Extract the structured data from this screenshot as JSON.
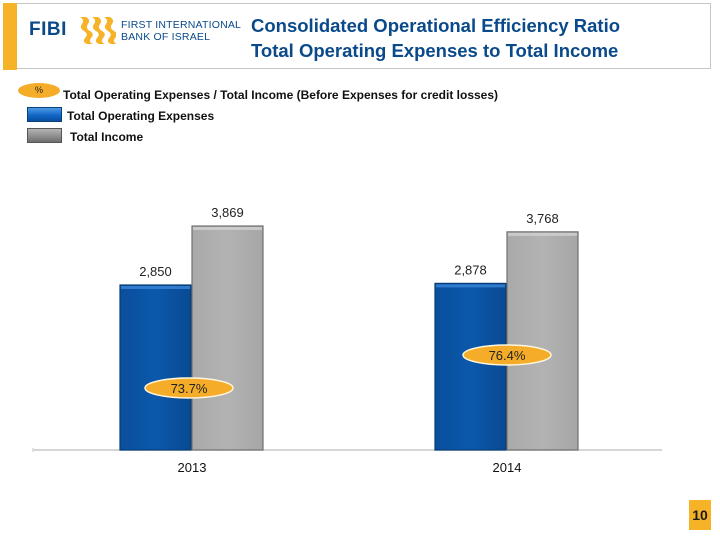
{
  "header": {
    "brand_short": "FIBI",
    "brand_line1": "FIRST INTERNATIONAL",
    "brand_line2": "BANK OF ISRAEL",
    "title_line1": "Consolidated Operational Efficiency Ratio",
    "title_line2": "Total Operating Expenses to Total Income",
    "logo_icon": "wave-logo-icon"
  },
  "legend": {
    "ratio_symbol": "%",
    "ratio_label": "Total Operating Expenses / Total Income (Before Expenses for credit losses)",
    "expenses_label": "Total Operating Expenses",
    "income_label": "Total Income"
  },
  "colors": {
    "brand_blue": "#0a4a8a",
    "accent_orange": "#f7b328",
    "expenses_bar": "#0b56a8",
    "income_bar": "#b0b0b0"
  },
  "chart_data": {
    "type": "bar",
    "title": "Consolidated Operational Efficiency Ratio - Total Operating Expenses to Total Income",
    "xlabel": "",
    "ylabel": "",
    "categories": [
      "2013",
      "2014"
    ],
    "series": [
      {
        "name": "Total Operating Expenses",
        "values": [
          2850,
          2878
        ],
        "labels": [
          "2,850",
          "2,878"
        ]
      },
      {
        "name": "Total Income",
        "values": [
          3869,
          3768
        ],
        "labels": [
          "3,869",
          "3,768"
        ]
      }
    ],
    "ratio": {
      "name": "Total Operating Expenses / Total Income",
      "values": [
        73.7,
        76.4
      ],
      "labels": [
        "73.7%",
        "76.4%"
      ]
    },
    "ylim": [
      0,
      4000
    ],
    "grid": false,
    "legend_position": "top-left"
  },
  "footer": {
    "page_number": "10"
  }
}
